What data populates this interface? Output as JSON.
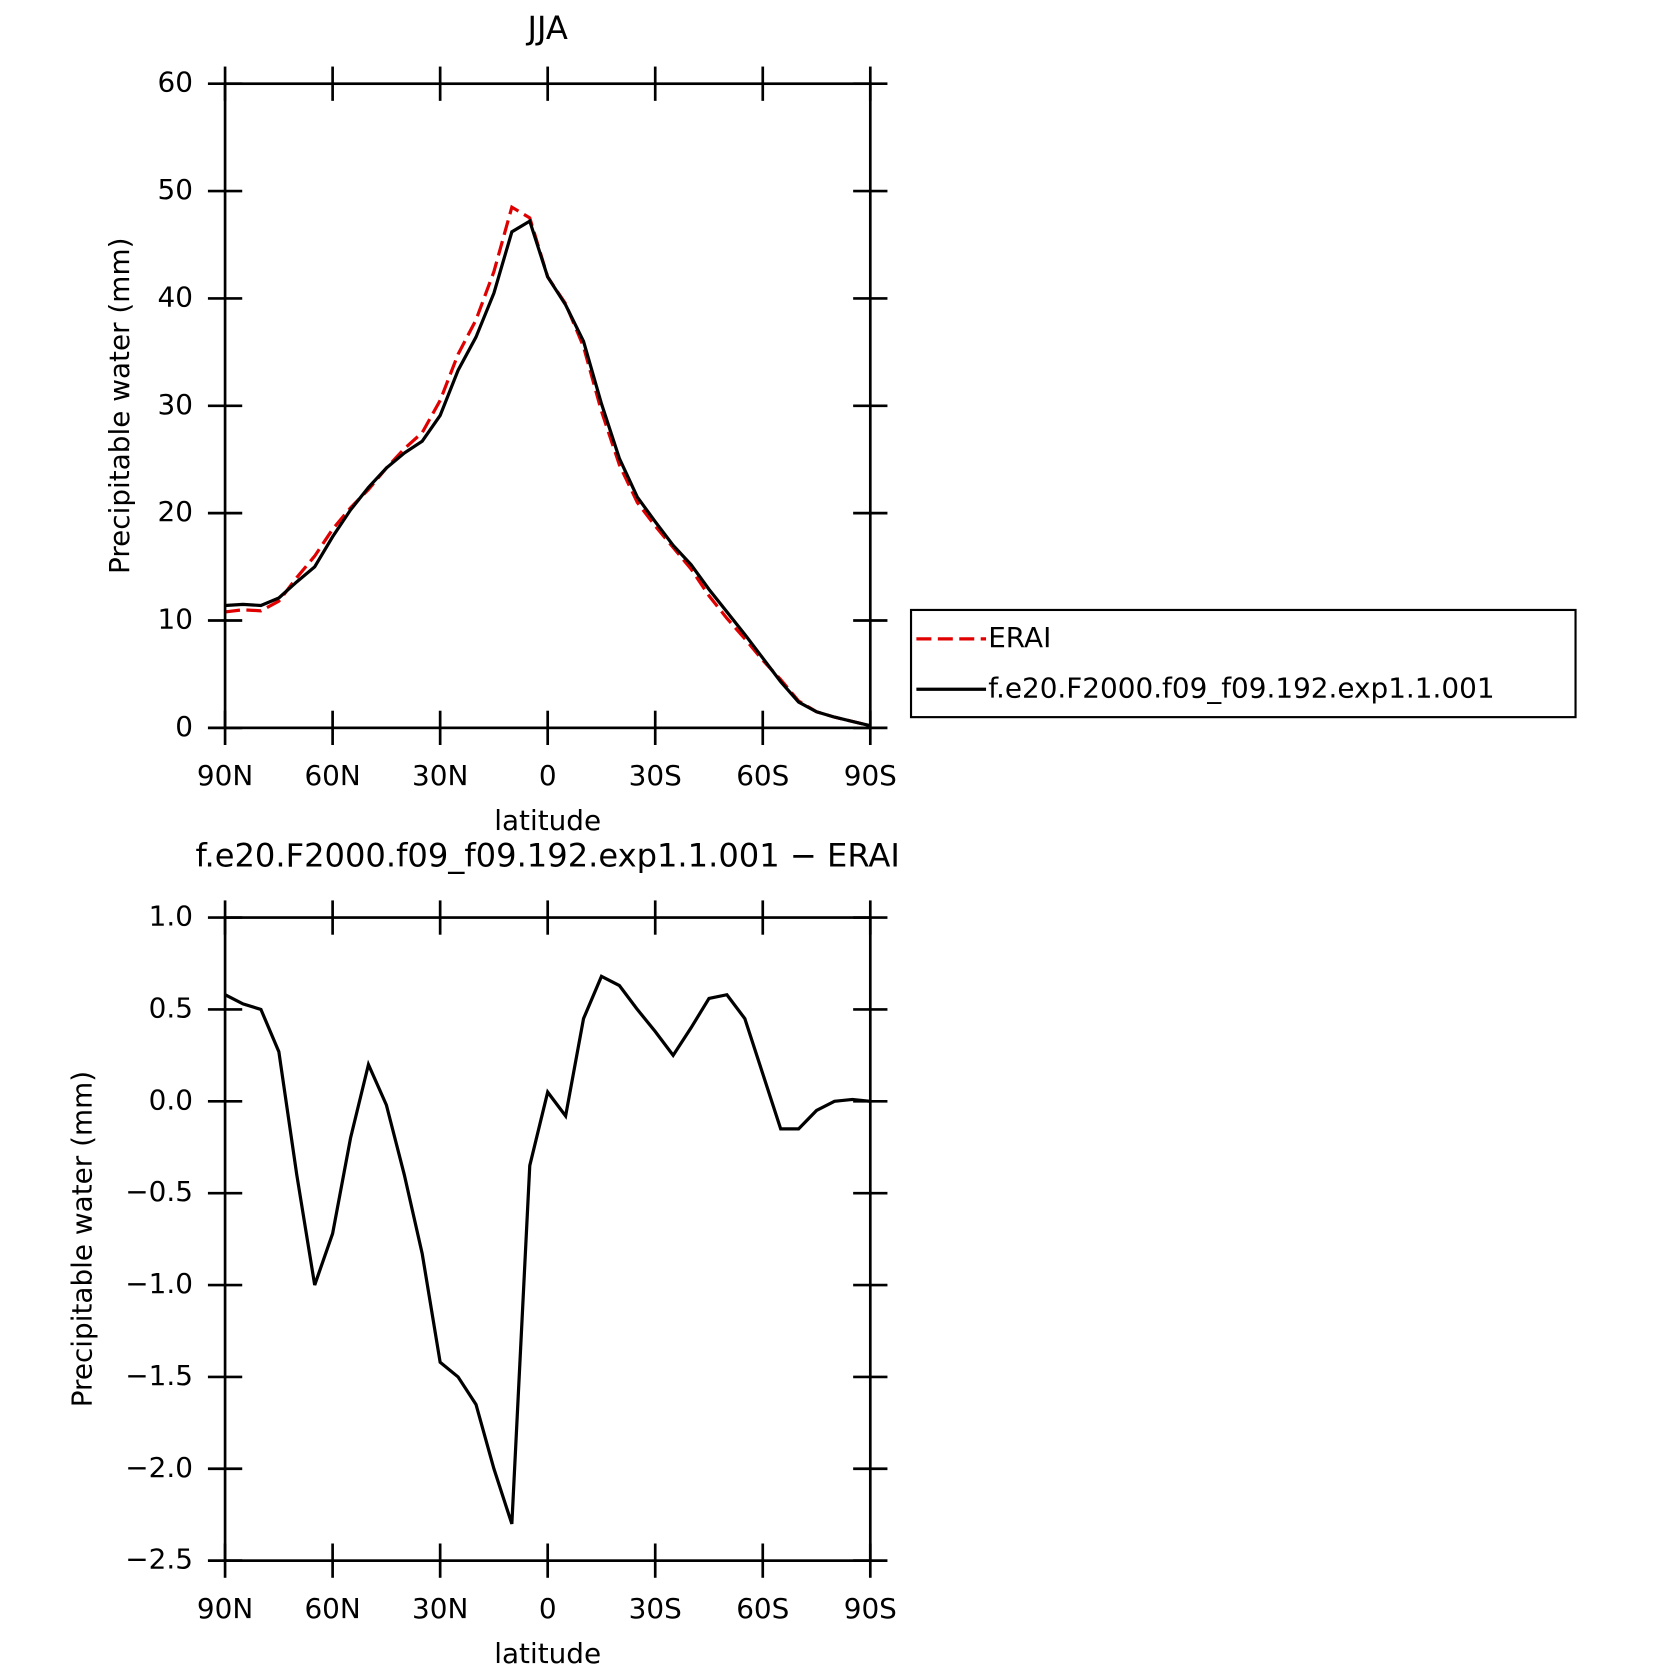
{
  "chart_data": [
    {
      "type": "line",
      "title": "JJA",
      "xlabel": "latitude",
      "ylabel": "Precipitable water (mm)",
      "x": [
        90,
        85,
        80,
        75,
        70,
        65,
        60,
        55,
        50,
        45,
        40,
        35,
        30,
        25,
        20,
        15,
        10,
        5,
        0,
        -5,
        -10,
        -15,
        -20,
        -25,
        -30,
        -35,
        -40,
        -45,
        -50,
        -55,
        -60,
        -65,
        -70,
        -75,
        -80,
        -85,
        -90
      ],
      "series": [
        {
          "name": "ERAI",
          "color": "#e00000",
          "line_style": "dashed",
          "values": [
            10.8,
            11.0,
            10.9,
            11.8,
            14.0,
            16.0,
            18.5,
            20.5,
            22.2,
            24.2,
            26.0,
            27.5,
            30.5,
            34.8,
            38.0,
            42.5,
            48.5,
            47.5,
            42.0,
            39.5,
            35.5,
            29.5,
            24.5,
            21.0,
            18.8,
            16.8,
            14.8,
            12.3,
            10.2,
            8.3,
            6.3,
            4.5,
            2.5,
            1.5,
            1.0,
            0.6,
            0.2
          ]
        },
        {
          "name": "f.e20.F2000.f09_f09.192.exp1.1.001",
          "color": "#000000",
          "line_style": "solid",
          "values": [
            11.4,
            11.5,
            11.4,
            12.1,
            13.6,
            15.0,
            17.8,
            20.3,
            22.4,
            24.2,
            25.6,
            26.7,
            29.1,
            33.3,
            36.4,
            40.5,
            46.2,
            47.2,
            42.0,
            39.4,
            36.0,
            30.2,
            25.1,
            21.5,
            19.2,
            17.0,
            15.2,
            12.9,
            10.8,
            8.7,
            6.5,
            4.3,
            2.4,
            1.5,
            1.0,
            0.6,
            0.2
          ]
        }
      ],
      "xlim": [
        90,
        -90
      ],
      "xticks": [
        {
          "value": 90,
          "label": "90N"
        },
        {
          "value": 60,
          "label": "60N"
        },
        {
          "value": 30,
          "label": "30N"
        },
        0,
        {
          "value": -30,
          "label": "30S"
        },
        {
          "value": -60,
          "label": "60S"
        },
        {
          "value": -90,
          "label": "90S"
        }
      ],
      "ylim": [
        0,
        60
      ],
      "yticks": [
        0,
        10,
        20,
        30,
        40,
        50,
        60
      ],
      "legend": "right"
    },
    {
      "type": "line",
      "title": "f.e20.F2000.f09_f09.192.exp1.1.001 − ERAI",
      "xlabel": "latitude",
      "ylabel": "Precipitable water (mm)",
      "x": [
        90,
        85,
        80,
        75,
        70,
        65,
        60,
        55,
        50,
        45,
        40,
        35,
        30,
        25,
        20,
        15,
        10,
        5,
        0,
        -5,
        -10,
        -15,
        -20,
        -25,
        -30,
        -35,
        -40,
        -45,
        -50,
        -55,
        -60,
        -65,
        -70,
        -75,
        -80,
        -85,
        -90
      ],
      "series": [
        {
          "color": "#000000",
          "line_style": "solid",
          "values": [
            0.58,
            0.53,
            0.5,
            0.27,
            -0.4,
            -1.0,
            -0.72,
            -0.2,
            0.2,
            -0.02,
            -0.4,
            -0.83,
            -1.42,
            -1.5,
            -1.65,
            -2.0,
            -2.3,
            -0.35,
            0.05,
            -0.08,
            0.45,
            0.68,
            0.63,
            0.5,
            0.38,
            0.25,
            0.4,
            0.56,
            0.58,
            0.45,
            0.15,
            -0.15,
            -0.15,
            -0.05,
            0.0,
            0.01,
            0.0
          ]
        }
      ],
      "xlim": [
        90,
        -90
      ],
      "xticks": [
        {
          "value": 90,
          "label": "90N"
        },
        {
          "value": 60,
          "label": "60N"
        },
        {
          "value": 30,
          "label": "30N"
        },
        0,
        {
          "value": -30,
          "label": "30S"
        },
        {
          "value": -60,
          "label": "60S"
        },
        {
          "value": -90,
          "label": "90S"
        }
      ],
      "ylim": [
        -2.5,
        1.0
      ],
      "yticks": [
        {
          "value": -2.5,
          "label": "−2.5"
        },
        {
          "value": -2.0,
          "label": "−2.0"
        },
        {
          "value": -1.5,
          "label": "−1.5"
        },
        {
          "value": -1.0,
          "label": "−1.0"
        },
        {
          "value": -0.5,
          "label": "−0.5"
        },
        {
          "value": 0,
          "label": "0.0"
        },
        0.5,
        {
          "value": 1.0,
          "label": "1.0"
        }
      ]
    }
  ]
}
